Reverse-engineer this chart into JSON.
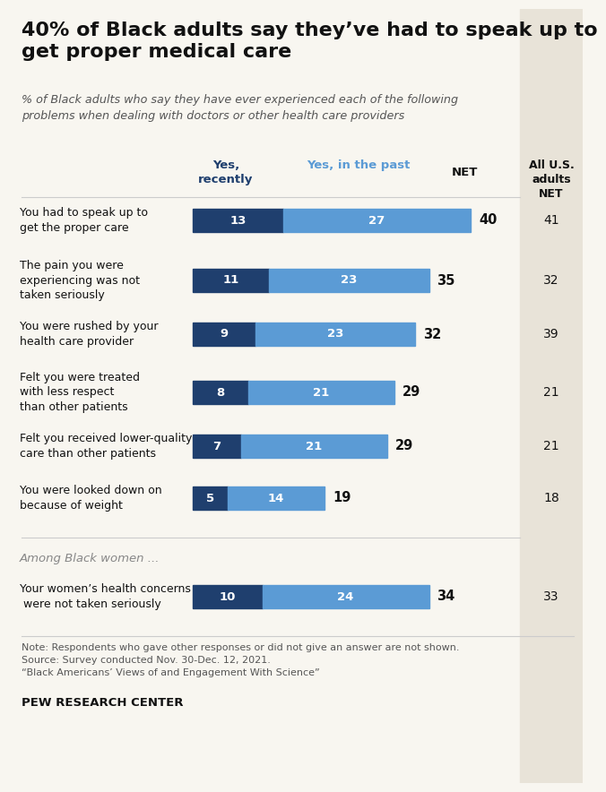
{
  "title": "40% of Black adults say they’ve had to speak up to\nget proper medical care",
  "subtitle": "% of Black adults who say they have ever experienced each of the following\nproblems when dealing with doctors or other health care providers",
  "categories": [
    "You had to speak up to\nget the proper care",
    "The pain you were\nexperiencing was not\ntaken seriously",
    "You were rushed by your\nhealth care provider",
    "Felt you were treated\nwith less respect\nthan other patients",
    "Felt you received lower-quality\ncare than other patients",
    "You were looked down on\nbecause of weight"
  ],
  "women_category": "Your women’s health concerns\n were not taken seriously",
  "yes_recently": [
    13,
    11,
    9,
    8,
    7,
    5
  ],
  "yes_past": [
    27,
    23,
    23,
    21,
    21,
    14
  ],
  "net": [
    40,
    35,
    32,
    29,
    29,
    19
  ],
  "all_adults_net": [
    41,
    32,
    39,
    21,
    21,
    18
  ],
  "women_recently": 10,
  "women_past": 24,
  "women_net": 34,
  "women_all_adults": 33,
  "color_recently": "#1f3f6e",
  "color_past": "#5b9bd5",
  "background_color": "#f8f6f0",
  "right_col_bg": "#e8e3d8",
  "note_line1": "Note: Respondents who gave other responses or did not give an answer are not shown.",
  "note_line2": "Source: Survey conducted Nov. 30-Dec. 12, 2021.",
  "note_line3": "“Black Americans’ Views of and Engagement With Science”",
  "footer": "PEW RESEARCH CENTER"
}
